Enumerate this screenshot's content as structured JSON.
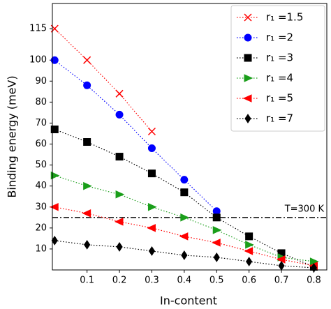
{
  "chart_data": {
    "type": "line",
    "xlabel": "In-content",
    "ylabel": "Binding energy (meV)",
    "xlim": [
      -0.007,
      0.84
    ],
    "ylim": [
      0,
      127
    ],
    "xticks": [
      0.1,
      0.2,
      0.3,
      0.4,
      0.5,
      0.6,
      0.7,
      0.8
    ],
    "yticks": [
      10,
      20,
      30,
      40,
      50,
      60,
      70,
      80,
      90,
      100,
      115
    ],
    "legend": "upper right",
    "hline": {
      "value": 25,
      "label": "T=300 K",
      "color": "#000000"
    },
    "series": [
      {
        "name": "r₁ =1.5",
        "color": "#ff0000",
        "marker": "x",
        "x": [
          0,
          0.1,
          0.2,
          0.3
        ],
        "values": [
          115,
          100,
          84,
          66
        ]
      },
      {
        "name": "r₁ =2",
        "color": "#0000ff",
        "marker": "circle",
        "x": [
          0,
          0.1,
          0.2,
          0.3,
          0.4,
          0.5
        ],
        "values": [
          100,
          88,
          74,
          58,
          43,
          28
        ]
      },
      {
        "name": "r₁ =3",
        "color": "#000000",
        "marker": "square",
        "x": [
          0,
          0.1,
          0.2,
          0.3,
          0.4,
          0.5,
          0.6,
          0.7,
          0.8
        ],
        "values": [
          67,
          61,
          54,
          46,
          37,
          25,
          16,
          8,
          1.5
        ]
      },
      {
        "name": "r₁ =4",
        "color": "#1a9e1a",
        "marker": "triangle-right",
        "x": [
          0,
          0.1,
          0.2,
          0.3,
          0.4,
          0.5,
          0.6,
          0.7,
          0.8
        ],
        "values": [
          45,
          40,
          36,
          30,
          25,
          19,
          12,
          6,
          4
        ]
      },
      {
        "name": "r₁ =5",
        "color": "#ff0000",
        "marker": "triangle-left",
        "x": [
          0,
          0.1,
          0.2,
          0.3,
          0.4,
          0.5,
          0.6,
          0.7,
          0.8
        ],
        "values": [
          30,
          27,
          23,
          20,
          16,
          13,
          9,
          5,
          2
        ]
      },
      {
        "name": "r₁ =7",
        "color": "#000000",
        "marker": "diamond",
        "x": [
          0,
          0.1,
          0.2,
          0.3,
          0.4,
          0.5,
          0.6,
          0.7,
          0.8
        ],
        "values": [
          14,
          12,
          11,
          9,
          7,
          6,
          4,
          2,
          1
        ]
      }
    ]
  }
}
